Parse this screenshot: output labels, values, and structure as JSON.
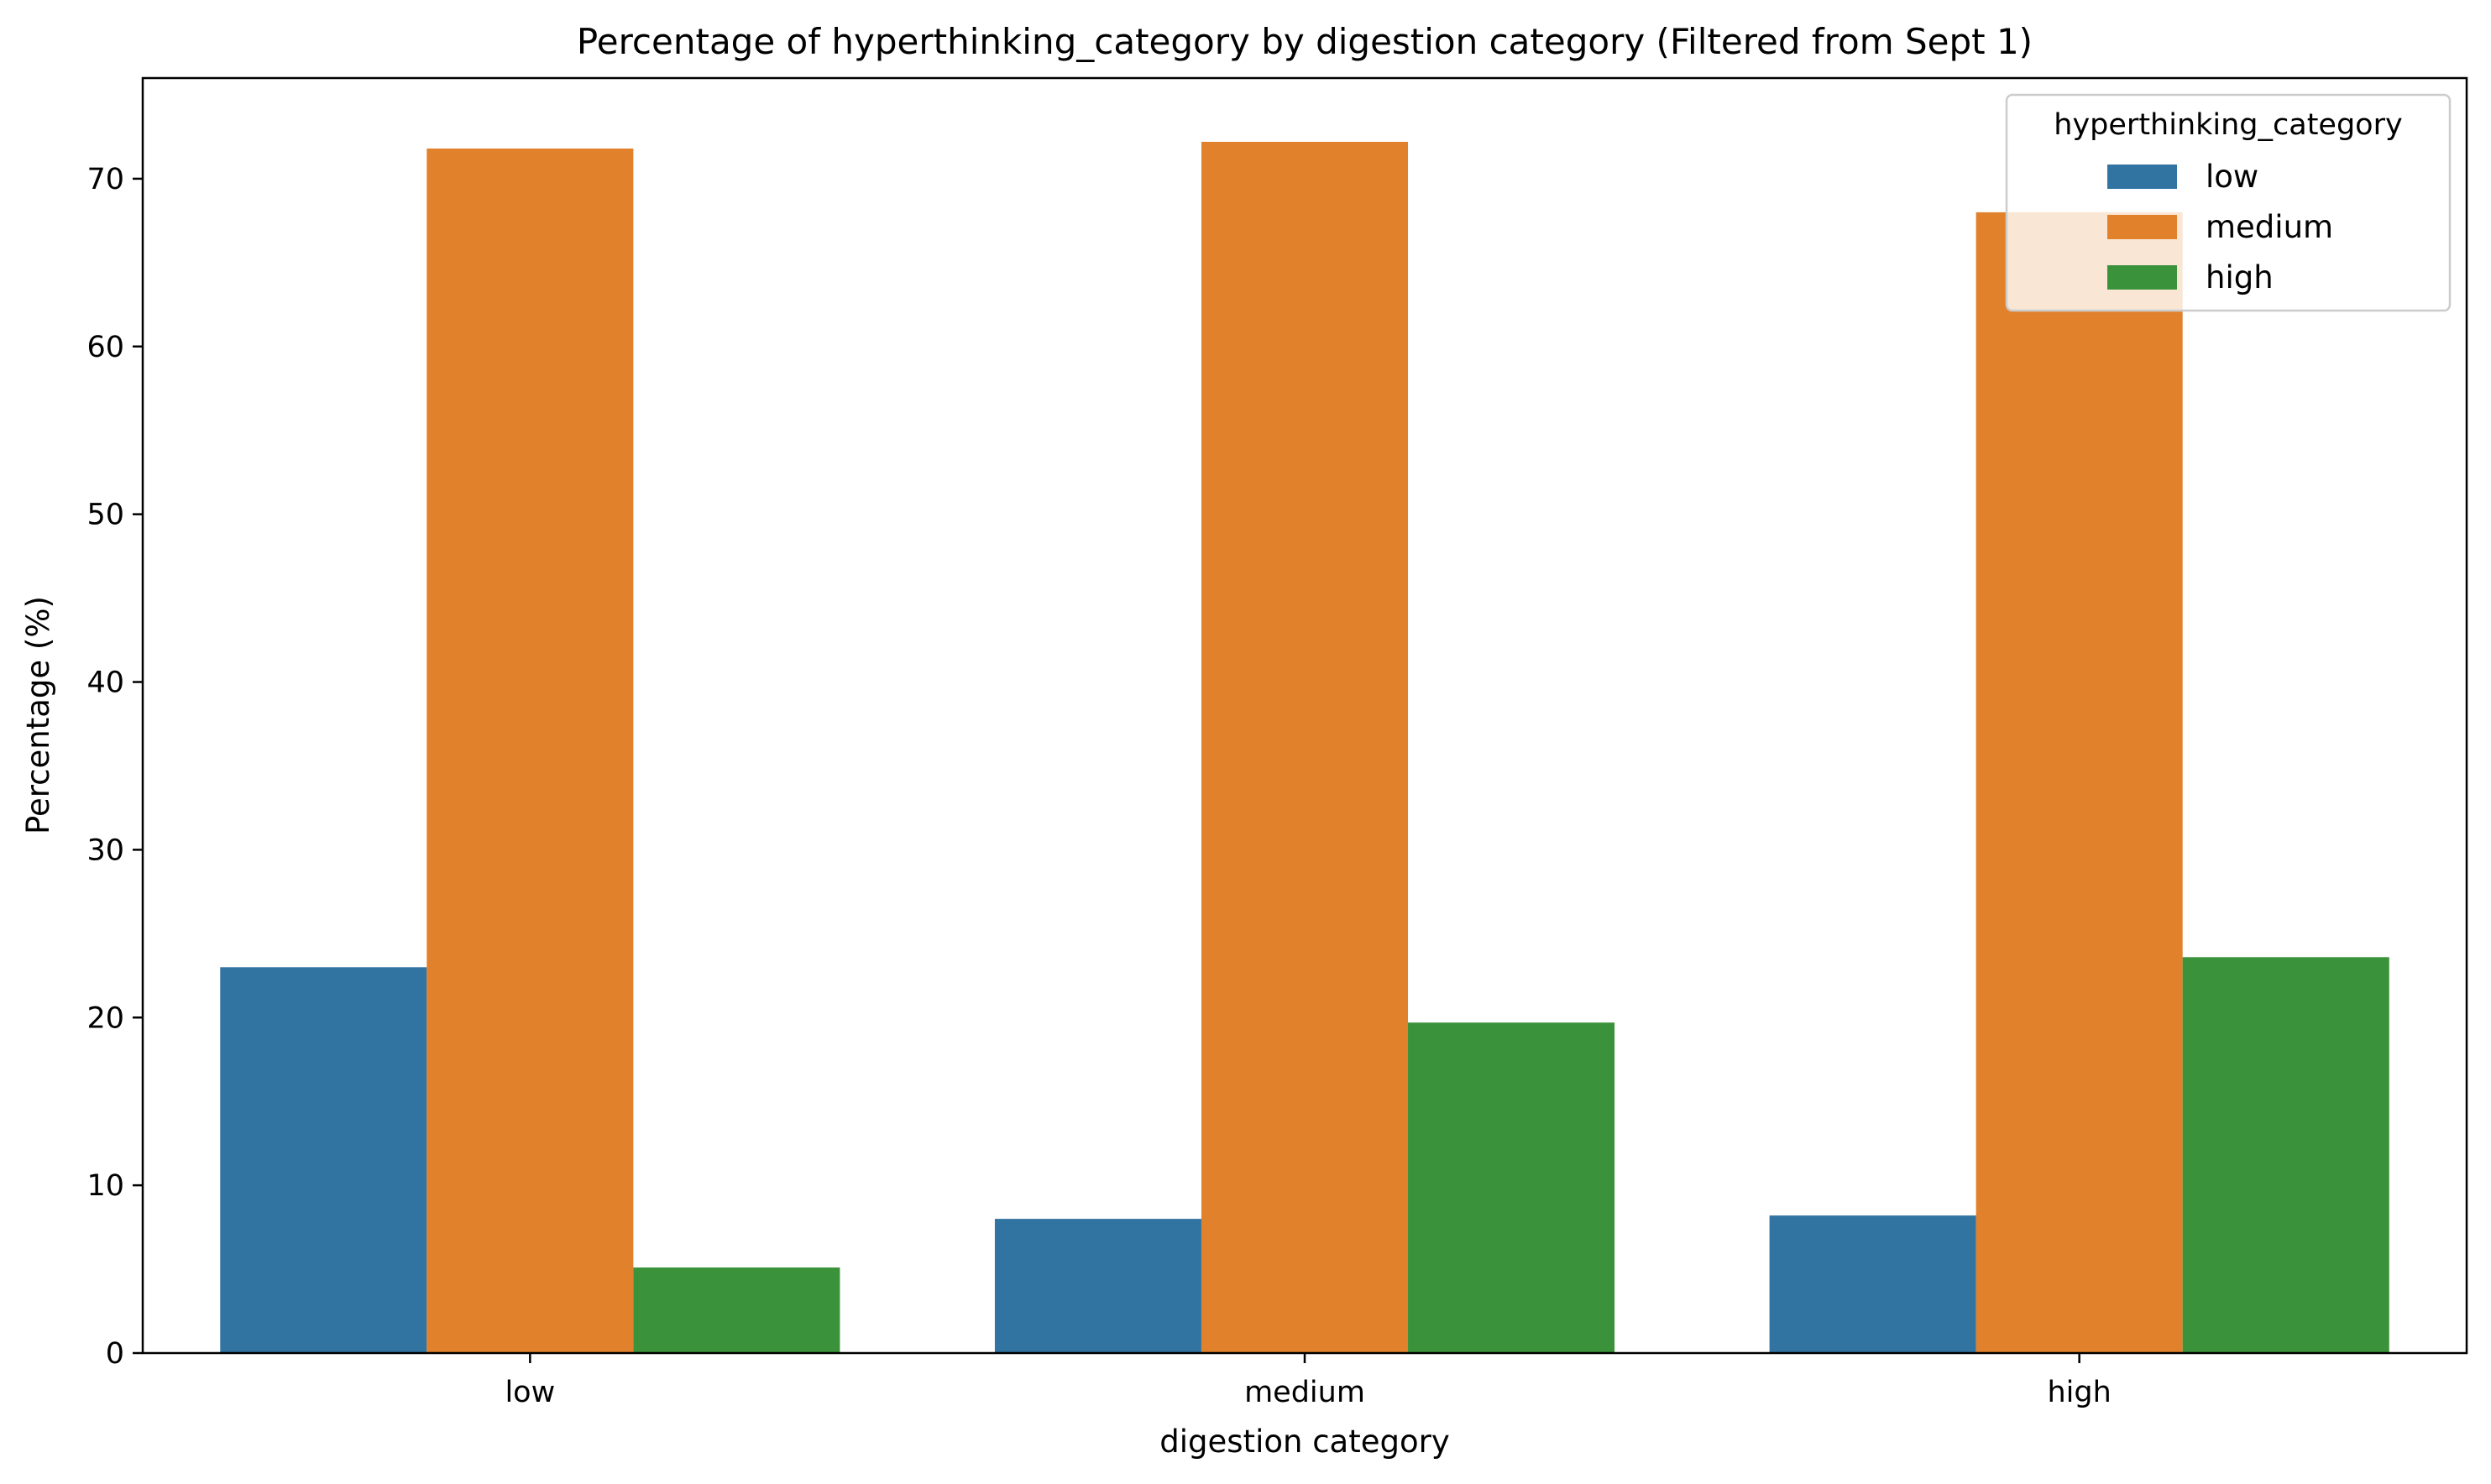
{
  "chart_data": {
    "type": "bar",
    "title": "Percentage of hyperthinking_category by digestion category (Filtered from Sept 1)",
    "xlabel": "digestion category",
    "ylabel": "Percentage (%)",
    "categories": [
      "low",
      "medium",
      "high"
    ],
    "ylim": [
      0,
      76
    ],
    "yticks": [
      0,
      10,
      20,
      30,
      40,
      50,
      60,
      70
    ],
    "grid": false,
    "legend": {
      "title": "hyperthinking_category",
      "placement": "top-right"
    },
    "series": [
      {
        "name": "low",
        "color": "#3274a1",
        "values": [
          23.0,
          8.0,
          8.2
        ]
      },
      {
        "name": "medium",
        "color": "#e1812c",
        "values": [
          71.8,
          72.2,
          68.0
        ]
      },
      {
        "name": "high",
        "color": "#3a923a",
        "values": [
          5.1,
          19.7,
          23.6
        ]
      }
    ]
  }
}
